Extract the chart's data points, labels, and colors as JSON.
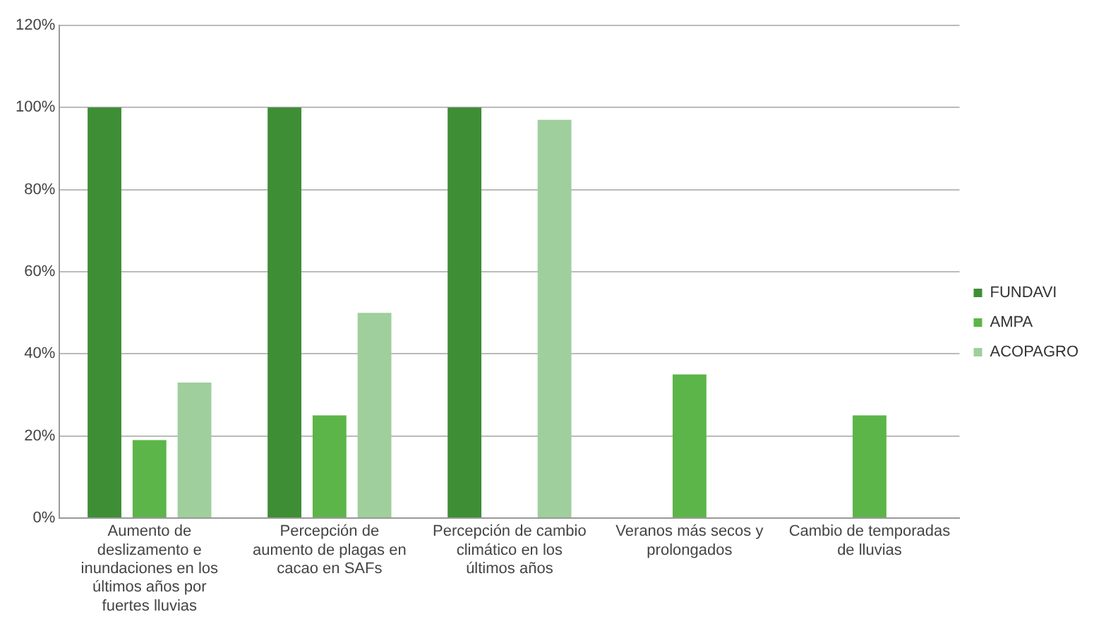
{
  "chart_data": {
    "type": "bar",
    "categories": [
      "Aumento de deslizamento e inundaciones en los últimos años por fuertes lluvias",
      "Percepción de aumento de plagas en cacao en SAFs",
      "Percepción de cambio climático en los últimos años",
      "Veranos más secos y prolongados",
      "Cambio de temporadas de lluvias"
    ],
    "series": [
      {
        "name": "FUNDAVI",
        "color": "#3e8e35",
        "values": [
          100,
          100,
          100,
          0,
          0
        ]
      },
      {
        "name": "AMPA",
        "color": "#5cb548",
        "values": [
          19,
          25,
          0,
          35,
          25
        ]
      },
      {
        "name": "ACOPAGRO",
        "color": "#9fcf9c",
        "values": [
          33,
          50,
          97,
          0,
          0
        ]
      }
    ],
    "ylim": [
      0,
      120
    ],
    "yticks": [
      {
        "value": 0,
        "label": "0%"
      },
      {
        "value": 20,
        "label": "20%"
      },
      {
        "value": 40,
        "label": "40%"
      },
      {
        "value": 60,
        "label": "60%"
      },
      {
        "value": 80,
        "label": "80%"
      },
      {
        "value": 100,
        "label": "100%"
      },
      {
        "value": 120,
        "label": "120%"
      }
    ],
    "grid": "y",
    "legend": "right"
  }
}
